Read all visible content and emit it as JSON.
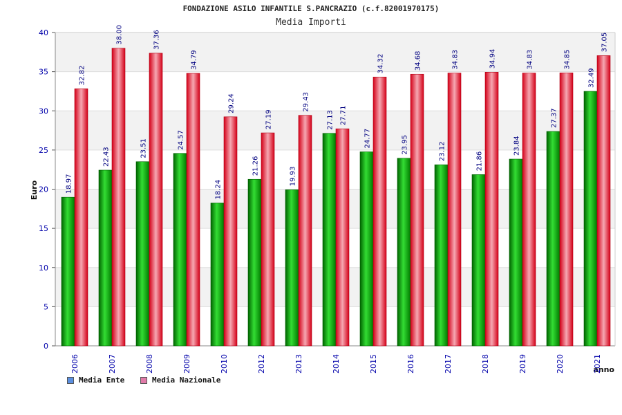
{
  "header": {
    "title": "FONDAZIONE ASILO INFANTILE S.PANCRAZIO (c.f.82001970175)",
    "subtitle": "Media Importi"
  },
  "colors": {
    "ente": "#00b000",
    "nazionale": "#e8192c",
    "tick_text": "#0000aa",
    "band": "#f2f2f2"
  },
  "legend": [
    {
      "label": "Media Ente",
      "color": "#5b8fe0"
    },
    {
      "label": "Media Nazionale",
      "color": "#e07aa8"
    }
  ],
  "chart_data": {
    "type": "bar",
    "title": "FONDAZIONE ASILO INFANTILE S.PANCRAZIO (c.f.82001970175)",
    "subtitle": "Media Importi",
    "xlabel": "anno",
    "ylabel": "Euro",
    "ylim": [
      0,
      40
    ],
    "yticks": [
      0,
      5,
      10,
      15,
      20,
      25,
      30,
      35,
      40
    ],
    "grid": true,
    "legend_position": "bottom-left",
    "categories": [
      "2006",
      "2007",
      "2008",
      "2009",
      "2010",
      "2012",
      "2013",
      "2014",
      "2015",
      "2016",
      "2017",
      "2018",
      "2019",
      "2020",
      "2021"
    ],
    "series": [
      {
        "name": "Media Ente",
        "values": [
          18.97,
          22.43,
          23.51,
          24.57,
          18.24,
          21.26,
          19.93,
          27.13,
          24.77,
          23.95,
          23.12,
          21.86,
          23.84,
          27.37,
          32.49
        ]
      },
      {
        "name": "Media Nazionale",
        "values": [
          32.82,
          38.0,
          37.36,
          34.79,
          29.24,
          27.19,
          29.43,
          27.71,
          34.32,
          34.68,
          34.83,
          34.94,
          34.83,
          34.85,
          37.05
        ]
      }
    ],
    "value_labels": [
      [
        "18.97",
        "22.43",
        "23.51",
        "24.57",
        "18.24",
        "21.26",
        "19.93",
        "27.13",
        "24.77",
        "23.95",
        "23.12",
        "21.86",
        "23.84",
        "27.37",
        "32.49"
      ],
      [
        "32.82",
        "38.00",
        "37.36",
        "34.79",
        "29.24",
        "27.19",
        "29.43",
        "27.71",
        "34.32",
        "34.68",
        "34.83",
        "34.94",
        "34.83",
        "34.85",
        "37.05"
      ]
    ]
  }
}
